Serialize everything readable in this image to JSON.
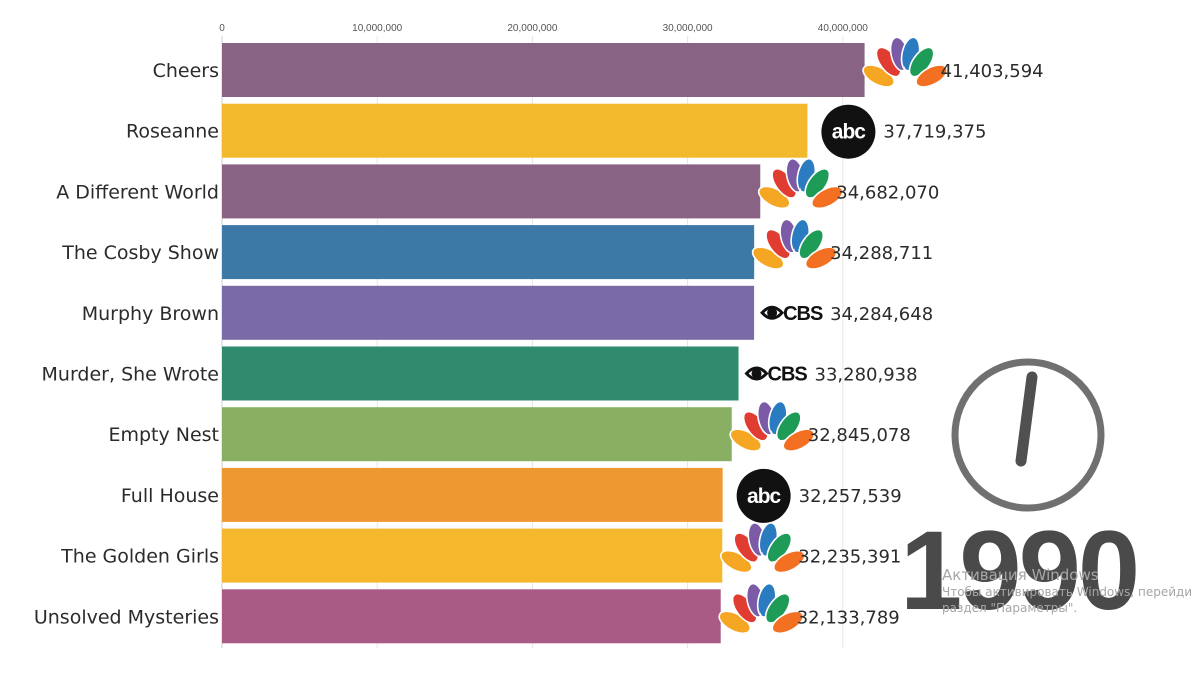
{
  "chart_data": {
    "type": "bar",
    "orientation": "horizontal",
    "period": "1990",
    "xlim": [
      0,
      50000000
    ],
    "x_ticks": [
      "0",
      "10,000,000",
      "20,000,000",
      "30,000,000",
      "40,000,000"
    ],
    "x_tick_values": [
      0,
      10000000,
      20000000,
      30000000,
      40000000
    ],
    "grid": true,
    "bars": [
      {
        "name": "Cheers",
        "value": 41403594,
        "label": "41,403,594",
        "network": "NBC",
        "color": "#896384"
      },
      {
        "name": "Roseanne",
        "value": 37719375,
        "label": "37,719,375",
        "network": "ABC",
        "color": "#f2b92d"
      },
      {
        "name": "A Different World",
        "value": 34682070,
        "label": "34,682,070",
        "network": "NBC",
        "color": "#896384"
      },
      {
        "name": "The Cosby Show",
        "value": 34288711,
        "label": "34,288,711",
        "network": "NBC",
        "color": "#3d79a7"
      },
      {
        "name": "Murphy Brown",
        "value": 34284648,
        "label": "34,284,648",
        "network": "CBS",
        "color": "#7a6aa6"
      },
      {
        "name": "Murder, She Wrote",
        "value": 33280938,
        "label": "33,280,938",
        "network": "CBS",
        "color": "#2f8a6e"
      },
      {
        "name": "Empty Nest",
        "value": 32845078,
        "label": "32,845,078",
        "network": "NBC",
        "color": "#89b062"
      },
      {
        "name": "Full House",
        "value": 32257539,
        "label": "32,257,539",
        "network": "ABC",
        "color": "#ee9831"
      },
      {
        "name": "The Golden Girls",
        "value": 32235391,
        "label": "32,235,391",
        "network": "NBC",
        "color": "#f5b82d"
      },
      {
        "name": "Unsolved Mysteries",
        "value": 32133789,
        "label": "32,133,789",
        "network": "NBC",
        "color": "#a95b86"
      }
    ]
  },
  "logos": {
    "abc_text": "abc",
    "cbs_text": "CBS",
    "nbc_colors": [
      "#f5a623",
      "#e03c31",
      "#7b5ba6",
      "#2a7bc0",
      "#1e9b57",
      "#f36f21"
    ]
  },
  "year_display": "1990",
  "watermark": {
    "title": "Активация Windows",
    "line1": "Чтобы активировать Windows, перейди",
    "line2": "раздел \"Параметры\"."
  }
}
